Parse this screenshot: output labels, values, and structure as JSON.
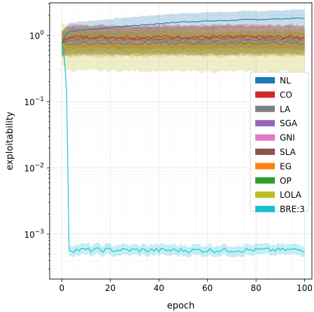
{
  "chart_data": {
    "type": "line",
    "title": "",
    "xlabel": "epoch",
    "ylabel": "exploitability",
    "xlim": [
      -5,
      103
    ],
    "ylim": [
      0.00021,
      3.1
    ],
    "yscale": "log",
    "grid": true,
    "legend_position": "center-right",
    "x_ticks": [
      0,
      20,
      40,
      60,
      80,
      100
    ],
    "y_ticks": [
      {
        "value": 1,
        "label": "10^0",
        "base": "10",
        "exp": "0"
      },
      {
        "value": 0.1,
        "label": "10^-1",
        "base": "10",
        "exp": "−1"
      },
      {
        "value": 0.01,
        "label": "10^-2",
        "base": "10",
        "exp": "−2"
      },
      {
        "value": 0.001,
        "label": "10^-3",
        "base": "10",
        "exp": "−3"
      }
    ],
    "series": [
      {
        "name": "NL",
        "color": "#1f77b4",
        "start": 0.75,
        "early": 1.15,
        "mid": 1.6,
        "end": 1.82,
        "band_ratio": 1.35,
        "noise": 0.02
      },
      {
        "name": "CO",
        "color": "#d62728",
        "start": 0.75,
        "early": 0.95,
        "mid": 0.95,
        "end": 0.95,
        "band_ratio": 1.5,
        "noise": 0.06
      },
      {
        "name": "LA",
        "color": "#7f7f7f",
        "start": 0.75,
        "early": 0.85,
        "mid": 0.85,
        "end": 0.85,
        "band_ratio": 1.6,
        "noise": 0.05
      },
      {
        "name": "SGA",
        "color": "#9467bd",
        "start": 0.75,
        "early": 0.82,
        "mid": 0.82,
        "end": 0.82,
        "band_ratio": 1.55,
        "noise": 0.05
      },
      {
        "name": "GNI",
        "color": "#e377c2",
        "start": 0.75,
        "early": 0.78,
        "mid": 0.78,
        "end": 0.78,
        "band_ratio": 1.5,
        "noise": 0.05
      },
      {
        "name": "SLA",
        "color": "#8c564b",
        "start": 0.75,
        "early": 0.9,
        "mid": 0.9,
        "end": 0.9,
        "band_ratio": 1.55,
        "noise": 0.05
      },
      {
        "name": "EG",
        "color": "#ff7f0e",
        "start": 0.75,
        "early": 0.72,
        "mid": 0.72,
        "end": 0.72,
        "band_ratio": 1.5,
        "noise": 0.05
      },
      {
        "name": "OP",
        "color": "#2ca02c",
        "start": 0.75,
        "early": 0.76,
        "mid": 0.76,
        "end": 0.76,
        "band_ratio": 1.5,
        "noise": 0.05
      },
      {
        "name": "LOLA",
        "color": "#bcbd22",
        "start": 0.75,
        "early": 0.62,
        "mid": 0.6,
        "end": 0.6,
        "band_ratio": 2.1,
        "noise": 0.06
      },
      {
        "name": "BRE:3",
        "color": "#17becf",
        "start": 0.75,
        "early": 0.00058,
        "mid": 0.00057,
        "end": 0.00058,
        "band_ratio": 1.2,
        "noise": 0.08
      }
    ]
  }
}
